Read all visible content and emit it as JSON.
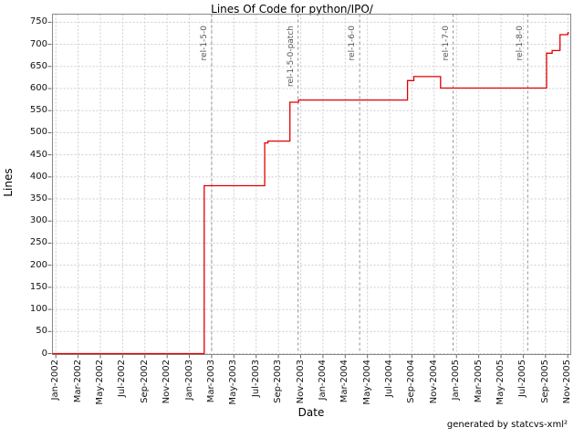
{
  "title": "Lines Of Code for python/IPO/",
  "footer": "generated by statcvs-xml²",
  "chart_data": {
    "type": "line",
    "style": "step",
    "title": "Lines Of Code for python/IPO/",
    "xlabel": "Date",
    "ylabel": "Lines",
    "ylim": [
      0,
      750
    ],
    "y_tick_step": 50,
    "y_ticks": [
      0,
      50,
      100,
      150,
      200,
      250,
      300,
      350,
      400,
      450,
      500,
      550,
      600,
      650,
      700,
      750
    ],
    "x_ticks": [
      "Jan-2002",
      "Mar-2002",
      "May-2002",
      "Jul-2002",
      "Sep-2002",
      "Nov-2002",
      "Jan-2003",
      "Mar-2003",
      "May-2003",
      "Jul-2003",
      "Sep-2003",
      "Nov-2003",
      "Jan-2004",
      "Mar-2004",
      "May-2004",
      "Jul-2004",
      "Sep-2004",
      "Nov-2004",
      "Jan-2005",
      "Mar-2005",
      "May-2005",
      "Jul-2005",
      "Sep-2005",
      "Nov-2005"
    ],
    "xlim": [
      "2002-01",
      "2005-12"
    ],
    "grid": true,
    "legend": false,
    "series": [
      {
        "name": "Lines of Code",
        "points": [
          {
            "date": "2002-01-01",
            "loc": 0
          },
          {
            "date": "2003-02-11",
            "loc": 380
          },
          {
            "date": "2003-07-24",
            "loc": 477
          },
          {
            "date": "2003-08-03",
            "loc": 481
          },
          {
            "date": "2003-10-02",
            "loc": 569
          },
          {
            "date": "2003-10-25",
            "loc": 574
          },
          {
            "date": "2004-08-19",
            "loc": 618
          },
          {
            "date": "2004-09-06",
            "loc": 627
          },
          {
            "date": "2004-11-18",
            "loc": 601
          },
          {
            "date": "2005-09-04",
            "loc": 680
          },
          {
            "date": "2005-09-19",
            "loc": 686
          },
          {
            "date": "2005-10-10",
            "loc": 722
          },
          {
            "date": "2005-11-01",
            "loc": 726
          },
          {
            "date": "2005-11-05",
            "loc": 726
          }
        ]
      }
    ],
    "releases": [
      {
        "label": "rel-1-5-0",
        "date": "2003-03-01"
      },
      {
        "label": "rel-1-5-0-patch",
        "date": "2003-10-24"
      },
      {
        "label": "rel-1-6-0",
        "date": "2004-04-10"
      },
      {
        "label": "rel-1-7-0",
        "date": "2004-12-22"
      },
      {
        "label": "rel-1-8-0",
        "date": "2005-07-13"
      }
    ],
    "colors": {
      "line": "#e00000",
      "grid": "#cccccc",
      "release_line": "#909090",
      "plot_border": "#888888",
      "tick": "#666666",
      "background": "#ffffff"
    }
  }
}
